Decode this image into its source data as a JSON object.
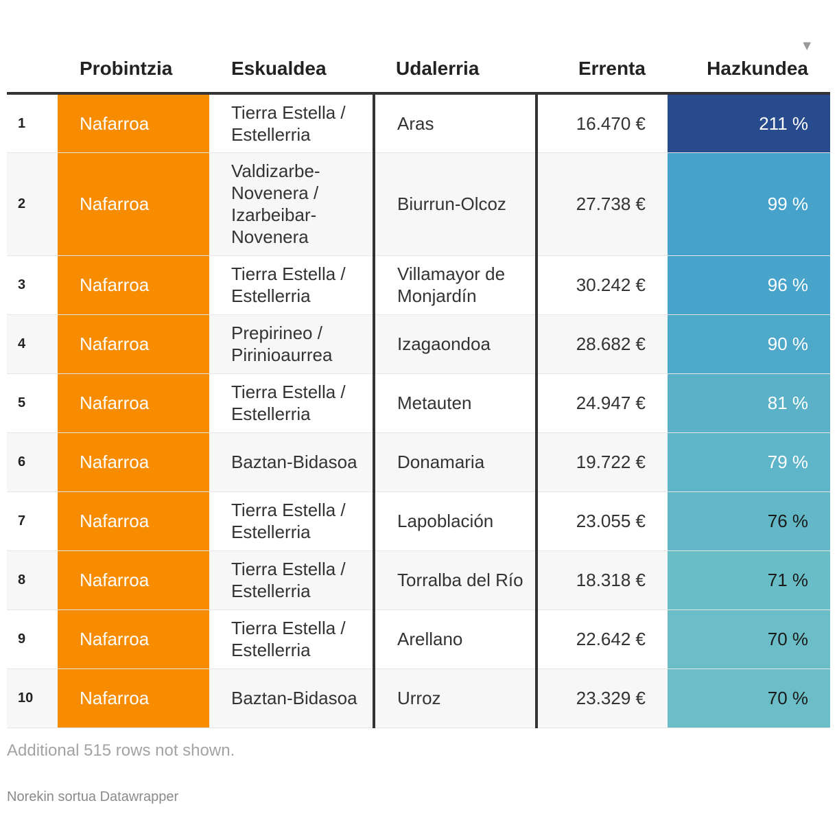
{
  "table": {
    "headers": {
      "rank": "",
      "probintzia": "Probintzia",
      "eskualdea": "Eskualdea",
      "udalerria": "Udalerria",
      "errenta": "Errenta",
      "hazkundea": "Hazkundea"
    },
    "sort_indicator": "▼",
    "colors": {
      "probintzia_fill": "#f78c00",
      "hazkundea_scale": [
        "#274b8c",
        "#46a2cb",
        "#49a4cb",
        "#4ea8ca",
        "#5bb2c8",
        "#5eb4c8",
        "#63b8c7",
        "#69bdc7",
        "#6bbec7",
        "#6bbec7"
      ],
      "hazkundea_text": [
        "#ffffff",
        "#ffffff",
        "#ffffff",
        "#ffffff",
        "#ffffff",
        "#ffffff",
        "#1a1a1a",
        "#1a1a1a",
        "#1a1a1a",
        "#1a1a1a"
      ]
    },
    "rows": [
      {
        "rank": "1",
        "probintzia": "Nafarroa",
        "eskualdea": "Tierra Estella / Estellerria",
        "udalerria": "Aras",
        "errenta": "16.470 €",
        "hazkundea": "211 %"
      },
      {
        "rank": "2",
        "probintzia": "Nafarroa",
        "eskualdea": "Valdizarbe-Novenera / Izarbeibar-Novenera",
        "udalerria": "Biurrun-Olcoz",
        "errenta": "27.738 €",
        "hazkundea": "99 %"
      },
      {
        "rank": "3",
        "probintzia": "Nafarroa",
        "eskualdea": "Tierra Estella / Estellerria",
        "udalerria": "Villamayor de Monjardín",
        "errenta": "30.242 €",
        "hazkundea": "96 %"
      },
      {
        "rank": "4",
        "probintzia": "Nafarroa",
        "eskualdea": "Prepirineo / Pirinioaurrea",
        "udalerria": "Izagaondoa",
        "errenta": "28.682 €",
        "hazkundea": "90 %"
      },
      {
        "rank": "5",
        "probintzia": "Nafarroa",
        "eskualdea": "Tierra Estella / Estellerria",
        "udalerria": "Metauten",
        "errenta": "24.947 €",
        "hazkundea": "81 %"
      },
      {
        "rank": "6",
        "probintzia": "Nafarroa",
        "eskualdea": "Baztan-Bidasoa",
        "udalerria": "Donamaria",
        "errenta": "19.722 €",
        "hazkundea": "79 %"
      },
      {
        "rank": "7",
        "probintzia": "Nafarroa",
        "eskualdea": "Tierra Estella / Estellerria",
        "udalerria": "Lapoblación",
        "errenta": "23.055 €",
        "hazkundea": "76 %"
      },
      {
        "rank": "8",
        "probintzia": "Nafarroa",
        "eskualdea": "Tierra Estella / Estellerria",
        "udalerria": "Torralba del Río",
        "errenta": "18.318 €",
        "hazkundea": "71 %"
      },
      {
        "rank": "9",
        "probintzia": "Nafarroa",
        "eskualdea": "Tierra Estella / Estellerria",
        "udalerria": "Arellano",
        "errenta": "22.642 €",
        "hazkundea": "70 %"
      },
      {
        "rank": "10",
        "probintzia": "Nafarroa",
        "eskualdea": "Baztan-Bidasoa",
        "udalerria": "Urroz",
        "errenta": "23.329 €",
        "hazkundea": "70 %"
      }
    ]
  },
  "notes": "Additional 515 rows not shown.",
  "credit": "Norekin sortua Datawrapper",
  "chart_data": {
    "type": "table",
    "columns": [
      "",
      "Probintzia",
      "Eskualdea",
      "Udalerria",
      "Errenta",
      "Hazkundea"
    ],
    "rows": [
      [
        "1",
        "Nafarroa",
        "Tierra Estella / Estellerria",
        "Aras",
        16470,
        211
      ],
      [
        "2",
        "Nafarroa",
        "Valdizarbe-Novenera / Izarbeibar-Novenera",
        "Biurrun-Olcoz",
        27738,
        99
      ],
      [
        "3",
        "Nafarroa",
        "Tierra Estella / Estellerria",
        "Villamayor de Monjardín",
        30242,
        96
      ],
      [
        "4",
        "Nafarroa",
        "Prepirineo / Pirinioaurrea",
        "Izagaondoa",
        28682,
        90
      ],
      [
        "5",
        "Nafarroa",
        "Tierra Estella / Estellerria",
        "Metauten",
        24947,
        81
      ],
      [
        "6",
        "Nafarroa",
        "Baztan-Bidasoa",
        "Donamaria",
        19722,
        79
      ],
      [
        "7",
        "Nafarroa",
        "Tierra Estella / Estellerria",
        "Lapoblación",
        23055,
        76
      ],
      [
        "8",
        "Nafarroa",
        "Tierra Estella / Estellerria",
        "Torralba del Río",
        18318,
        71
      ],
      [
        "9",
        "Nafarroa",
        "Tierra Estella / Estellerria",
        "Arellano",
        22642,
        70
      ],
      [
        "10",
        "Nafarroa",
        "Baztan-Bidasoa",
        "Urroz",
        23329,
        70
      ]
    ],
    "sorted_by": "Hazkundea",
    "sort_order": "descending"
  }
}
